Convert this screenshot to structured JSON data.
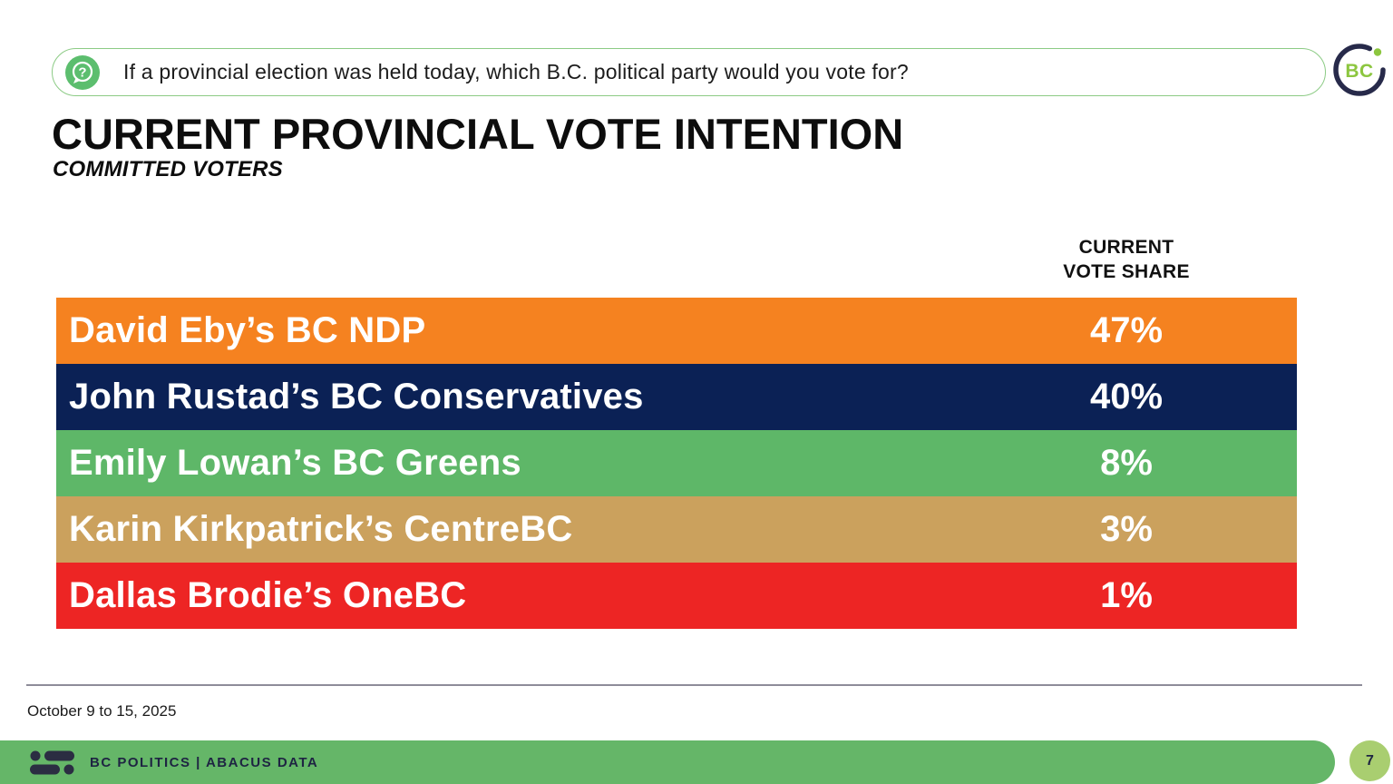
{
  "question_bar": {
    "icon": "question-bubble-icon",
    "icon_color": "#5cbe6e",
    "text": "If a provincial election was held today, which B.C. political party would you vote for?"
  },
  "brand_logo": {
    "text": "BC",
    "ring_color": "#272a4a",
    "text_color": "#8cc63f"
  },
  "chart_data": {
    "type": "bar",
    "title": "CURRENT PROVINCIAL VOTE INTENTION",
    "subtitle": "COMMITTED VOTERS",
    "column_header_line1": "CURRENT",
    "column_header_line2": "VOTE SHARE",
    "categories": [
      "David Eby’s BC NDP",
      "John Rustad’s BC Conservatives",
      "Emily Lowan’s BC Greens",
      "Karin Kirkpatrick’s CentreBC",
      "Dallas Brodie’s OneBC"
    ],
    "values": [
      47,
      40,
      8,
      3,
      1
    ],
    "unit": "%",
    "rows": [
      {
        "label": "David Eby’s BC NDP",
        "value_label": "47%",
        "color": "#f58220"
      },
      {
        "label": "John Rustad’s BC Conservatives",
        "value_label": "40%",
        "color": "#0b2155"
      },
      {
        "label": "Emily Lowan’s BC Greens",
        "value_label": "8%",
        "color": "#5eb768"
      },
      {
        "label": "Karin Kirkpatrick’s CentreBC",
        "value_label": "3%",
        "color": "#cba15d"
      },
      {
        "label": "Dallas Brodie’s OneBC",
        "value_label": "1%",
        "color": "#ed2524"
      }
    ]
  },
  "footnote": {
    "date_range": "October 9 to 15, 2025"
  },
  "footer": {
    "label": "BC POLITICS  |  ABACUS DATA",
    "page_number": "7",
    "bar_color": "#65b668",
    "page_circle_color": "#a9ce70",
    "logo": "abacus-data-logo"
  }
}
